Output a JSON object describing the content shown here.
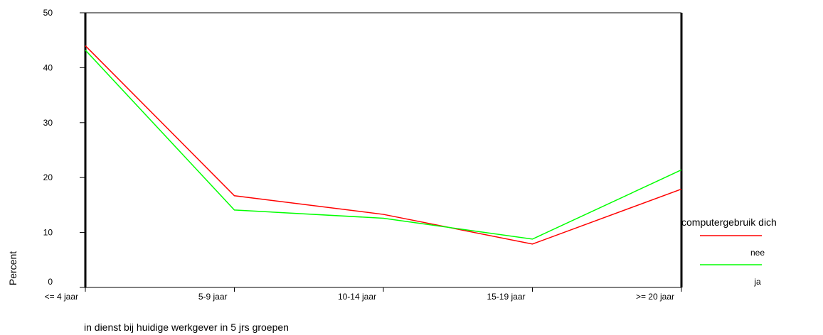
{
  "chart_data": {
    "type": "line",
    "categories": [
      "<= 4 jaar",
      "5-9 jaar",
      "10-14 jaar",
      "15-19 jaar",
      ">= 20 jaar"
    ],
    "series": [
      {
        "name": "nee",
        "color": "#ff0000",
        "values": [
          44.0,
          16.7,
          13.3,
          7.9,
          17.9
        ]
      },
      {
        "name": "ja",
        "color": "#00ff00",
        "values": [
          43.2,
          14.1,
          12.6,
          8.8,
          21.4
        ]
      }
    ],
    "xlabel": "in dienst bij huidige werkgever in 5 jrs groepen",
    "ylabel": "Percent",
    "ylim": [
      0,
      50
    ],
    "yticks": [
      0,
      10,
      20,
      30,
      40,
      50
    ],
    "grid": false,
    "legend": {
      "title": "computergebruik dich",
      "position": "right"
    }
  }
}
